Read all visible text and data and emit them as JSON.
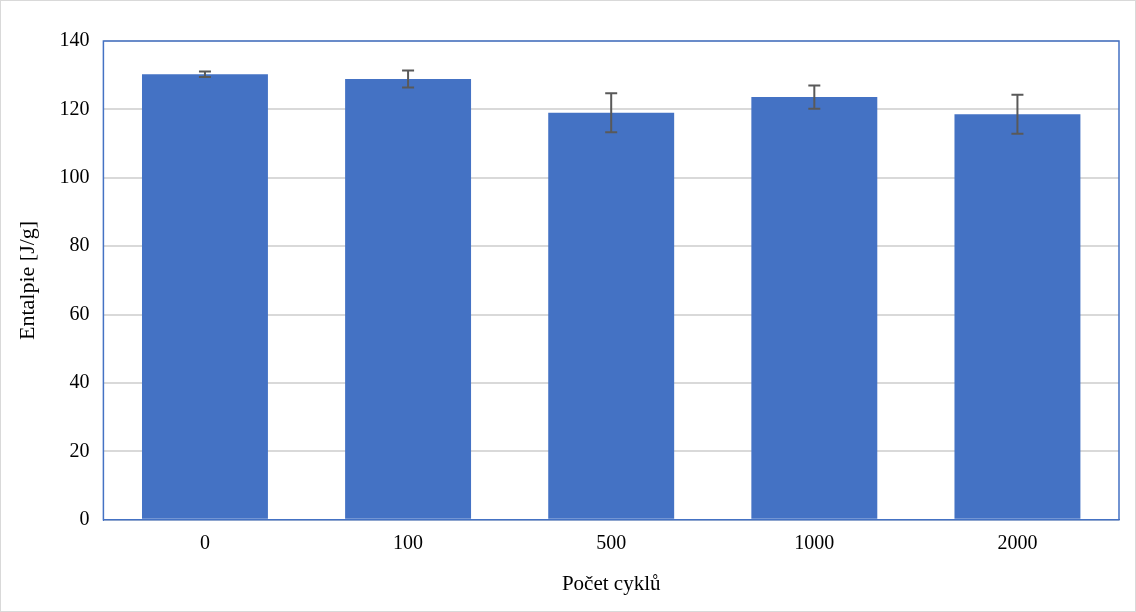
{
  "chart_data": {
    "type": "bar",
    "xlabel": "Počet cyklů",
    "ylabel": "Entalpie [J/g]",
    "categories": [
      "0",
      "100",
      "500",
      "1000",
      "2000"
    ],
    "values": [
      130.3,
      128.9,
      119.0,
      123.6,
      118.6
    ],
    "errors": [
      0.8,
      2.5,
      5.7,
      3.4,
      5.7
    ],
    "color": "#4472c4",
    "ylim": [
      0,
      140
    ],
    "yticks": [
      0,
      20,
      40,
      60,
      80,
      100,
      120,
      140
    ],
    "grid": "y",
    "legend": false
  }
}
